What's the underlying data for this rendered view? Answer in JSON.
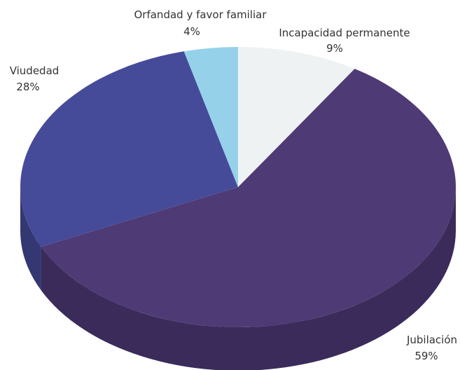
{
  "chart_data": {
    "type": "pie",
    "style": "3d",
    "start_angle_deg": -90,
    "direction": "clockwise",
    "slices": [
      {
        "name": "Incapacidad permanente",
        "value": 9,
        "label": "9%",
        "color": "#eef2f3",
        "side_color": "#c8cdd0"
      },
      {
        "name": "Jubilación",
        "value": 59,
        "label": "59%",
        "color": "#4e3a75",
        "side_color": "#3a2b5a"
      },
      {
        "name": "Viudedad",
        "value": 28,
        "label": "28%",
        "color": "#454b99",
        "side_color": "#333873"
      },
      {
        "name": "Orfandad y favor familiar",
        "value": 4,
        "label": "4%",
        "color": "#96d1ea",
        "side_color": "#6fa6bd"
      }
    ]
  }
}
